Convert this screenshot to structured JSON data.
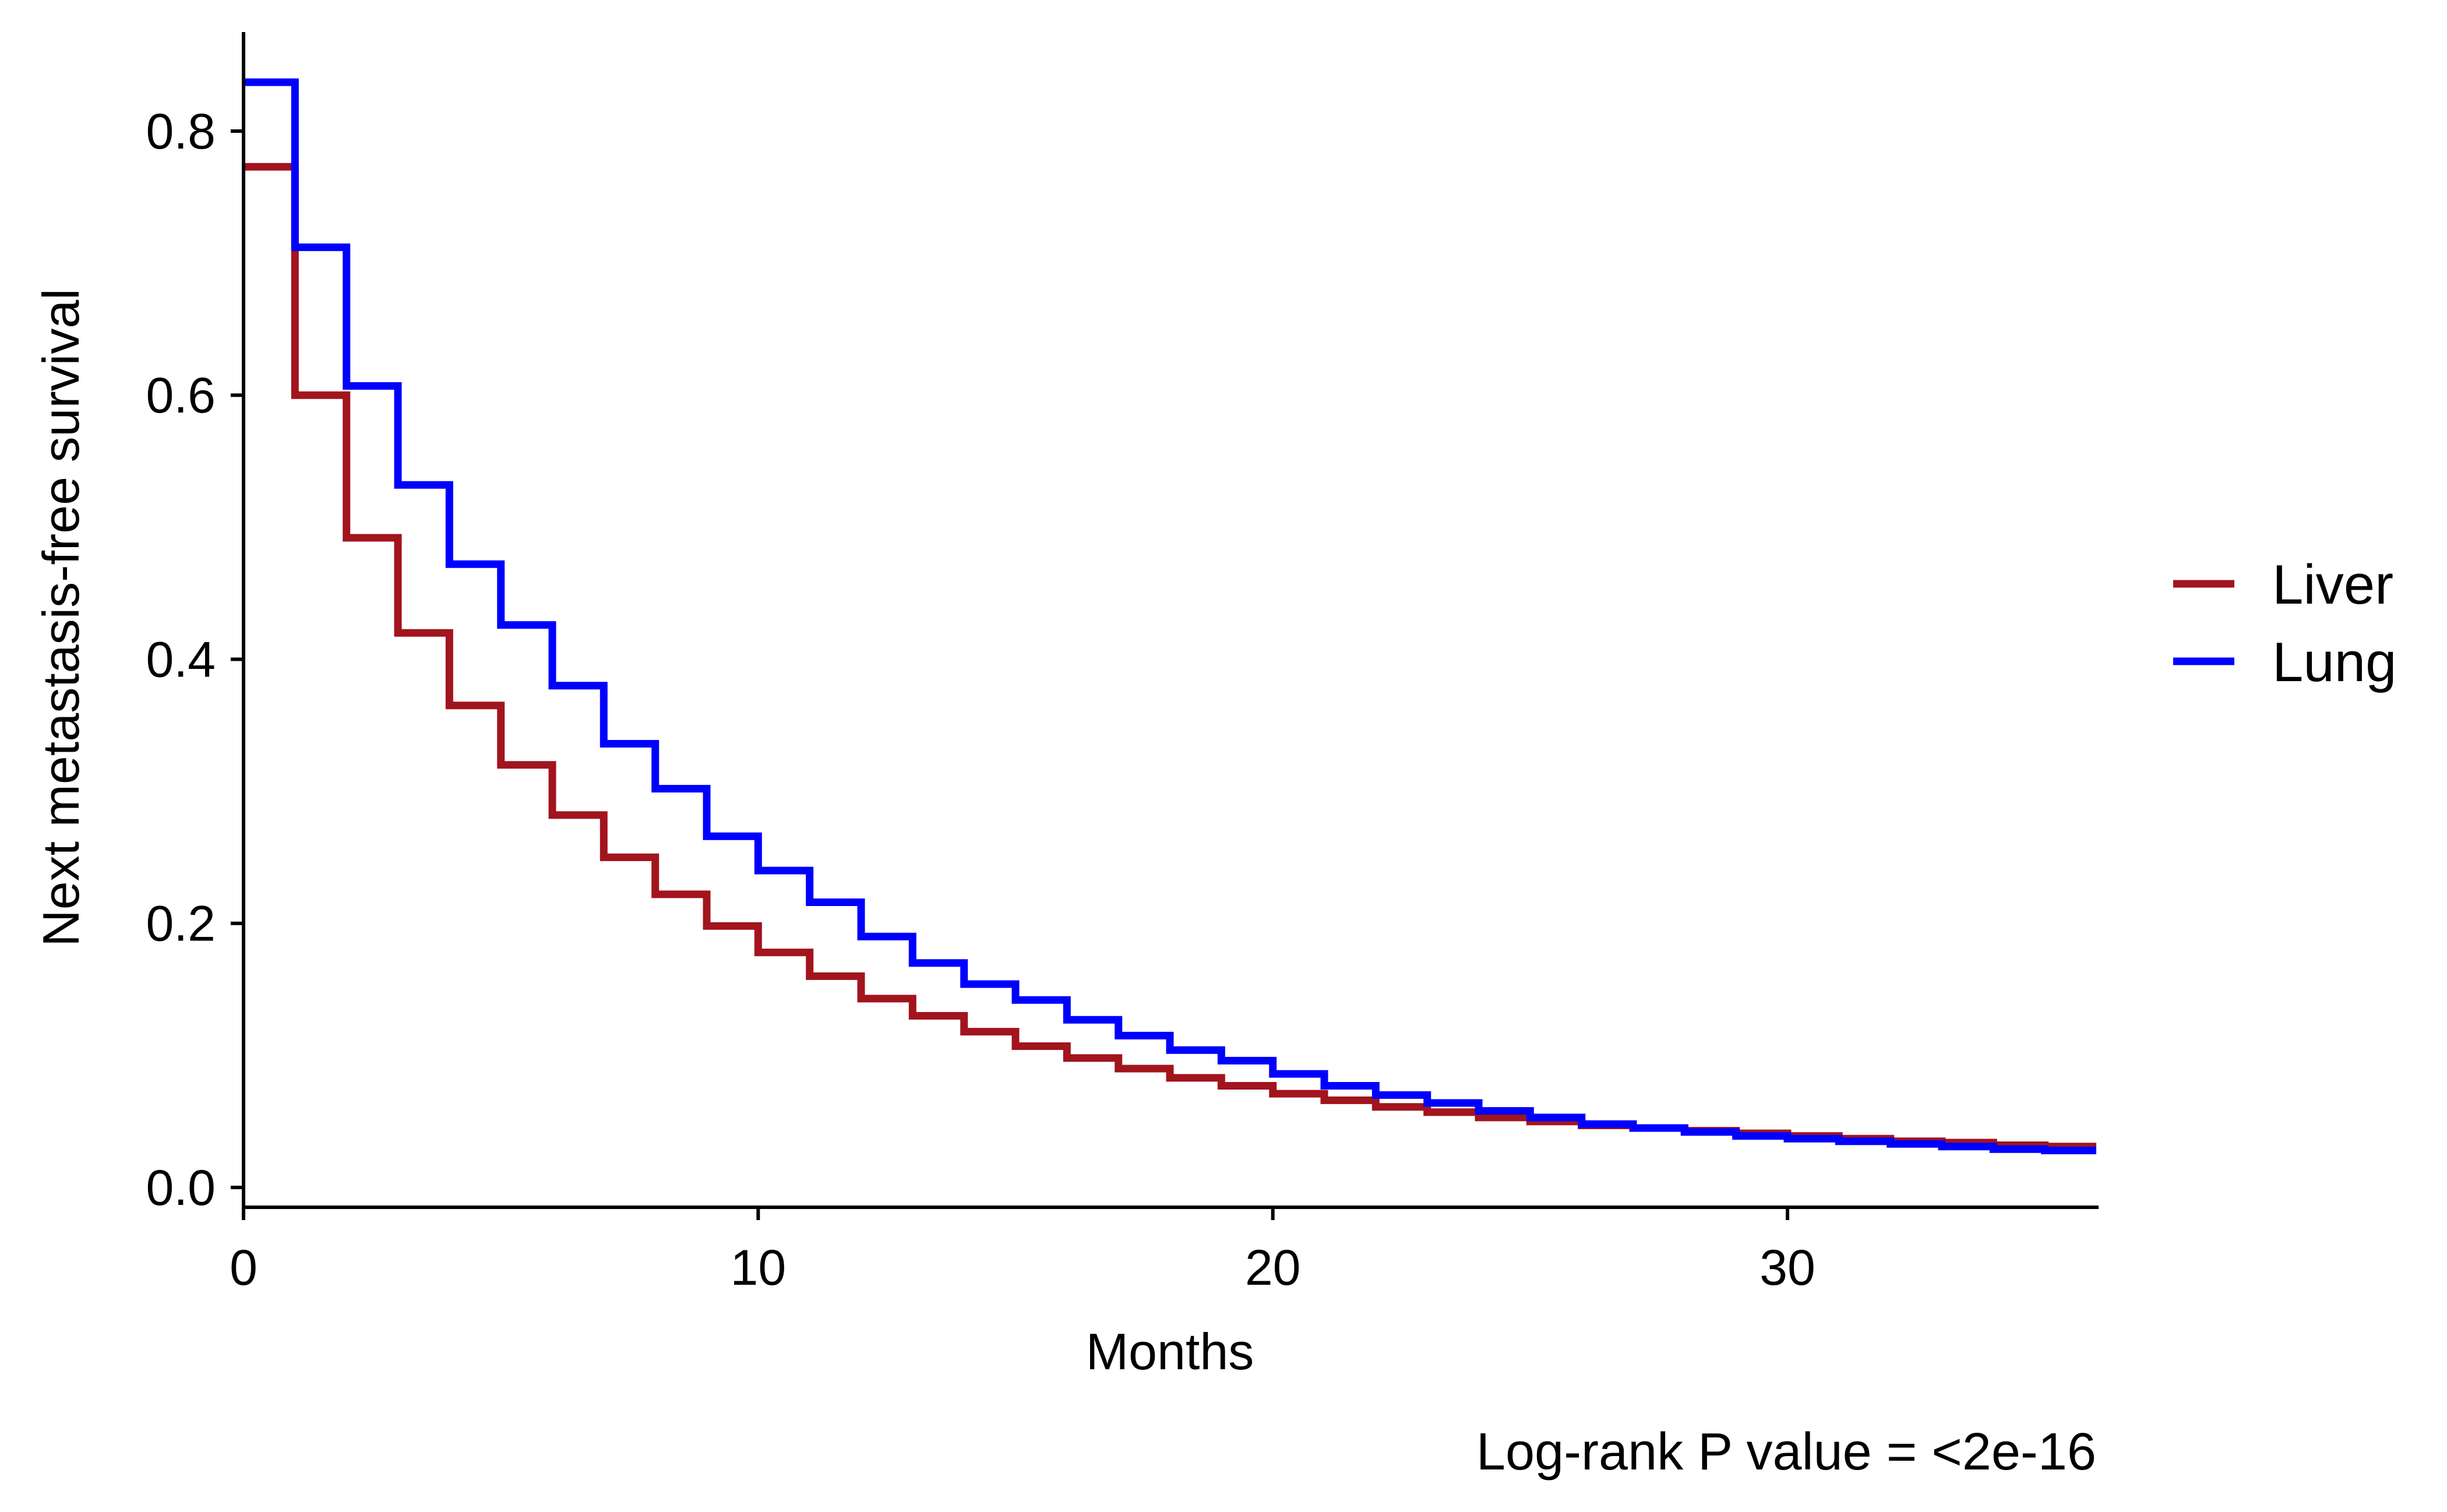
{
  "chart_data": {
    "type": "line",
    "step": true,
    "xlabel": "Months",
    "ylabel": "Next metastasis-free survival",
    "xlim": [
      0,
      36
    ],
    "ylim": [
      -0.015,
      0.875
    ],
    "x_ticks": [
      0,
      10,
      20,
      30
    ],
    "x_tick_labels": [
      "0",
      "10",
      "20",
      "30"
    ],
    "y_ticks": [
      0.0,
      0.2,
      0.4,
      0.6,
      0.8
    ],
    "y_tick_labels": [
      "0.0",
      "0.2",
      "0.4",
      "0.6",
      "0.8"
    ],
    "grid": false,
    "legend_position": "right",
    "annotation": "Log-rank P value = <2e-16",
    "series": [
      {
        "name": "Liver",
        "color": "#A2141E",
        "x": [
          0,
          1,
          2,
          3,
          4,
          5,
          6,
          7,
          8,
          9,
          10,
          11,
          12,
          13,
          14,
          15,
          16,
          17,
          18,
          19,
          20,
          21,
          22,
          23,
          24,
          25,
          26,
          27,
          28,
          29,
          30,
          31,
          32,
          33,
          34,
          35,
          36
        ],
        "y": [
          0.773,
          0.6,
          0.492,
          0.42,
          0.365,
          0.32,
          0.282,
          0.25,
          0.222,
          0.198,
          0.178,
          0.16,
          0.143,
          0.13,
          0.118,
          0.107,
          0.098,
          0.09,
          0.083,
          0.077,
          0.071,
          0.066,
          0.061,
          0.057,
          0.053,
          0.05,
          0.047,
          0.045,
          0.043,
          0.041,
          0.039,
          0.037,
          0.035,
          0.034,
          0.032,
          0.031,
          0.031
        ]
      },
      {
        "name": "Lung",
        "color": "#0000FF",
        "x": [
          0,
          1,
          2,
          3,
          4,
          5,
          6,
          7,
          8,
          9,
          10,
          11,
          12,
          13,
          14,
          15,
          16,
          17,
          18,
          19,
          20,
          21,
          22,
          23,
          24,
          25,
          26,
          27,
          28,
          29,
          30,
          31,
          32,
          33,
          34,
          35,
          36
        ],
        "y": [
          0.837,
          0.712,
          0.607,
          0.532,
          0.472,
          0.426,
          0.38,
          0.336,
          0.302,
          0.266,
          0.24,
          0.216,
          0.19,
          0.17,
          0.154,
          0.142,
          0.127,
          0.115,
          0.104,
          0.096,
          0.086,
          0.077,
          0.07,
          0.064,
          0.058,
          0.053,
          0.048,
          0.045,
          0.042,
          0.039,
          0.037,
          0.035,
          0.033,
          0.031,
          0.029,
          0.028,
          0.028
        ]
      }
    ]
  }
}
